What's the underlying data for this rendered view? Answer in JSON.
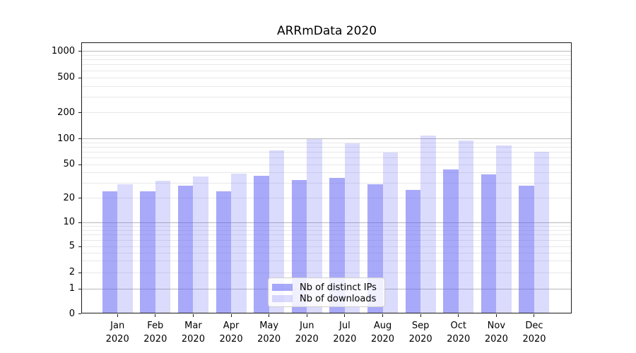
{
  "title": "ARRmData 2020",
  "legend": {
    "items": [
      {
        "label": "Nb of distinct IPs",
        "color": "rgba(98,98,245,0.55)"
      },
      {
        "label": "Nb of downloads",
        "color": "rgba(98,98,245,0.23)"
      }
    ]
  },
  "colors": {
    "bar_distinct_ips": "rgba(98,98,245,0.55)",
    "bar_downloads": "rgba(98,98,245,0.23)",
    "grid_major": "#b8b8b8",
    "grid_minor": "#e8e8e8",
    "axis": "#1a1a1a"
  },
  "chart_data": {
    "type": "bar",
    "title": "ARRmData 2020",
    "categories": [
      "Jan 2020",
      "Feb 2020",
      "Mar 2020",
      "Apr 2020",
      "May 2020",
      "Jun 2020",
      "Jul 2020",
      "Aug 2020",
      "Sep 2020",
      "Oct 2020",
      "Nov 2020",
      "Dec 2020"
    ],
    "x_tick_labels_line1": [
      "Jan",
      "Feb",
      "Mar",
      "Apr",
      "May",
      "Jun",
      "Jul",
      "Aug",
      "Sep",
      "Oct",
      "Nov",
      "Dec"
    ],
    "x_tick_labels_line2": "2020",
    "series": [
      {
        "name": "Nb of distinct IPs",
        "values": [
          24,
          24,
          28,
          24,
          37,
          33,
          35,
          29,
          25,
          44,
          38,
          28
        ]
      },
      {
        "name": "Nb of downloads",
        "values": [
          29,
          32,
          36,
          39,
          73,
          100,
          88,
          69,
          110,
          96,
          84,
          70
        ]
      }
    ],
    "y_ticks": [
      0,
      1,
      2,
      5,
      10,
      20,
      50,
      100,
      200,
      500,
      1000
    ],
    "y_axis_scale": "log-like",
    "ylim": [
      0,
      1000
    ],
    "grid": true,
    "legend_position": "lower center"
  }
}
